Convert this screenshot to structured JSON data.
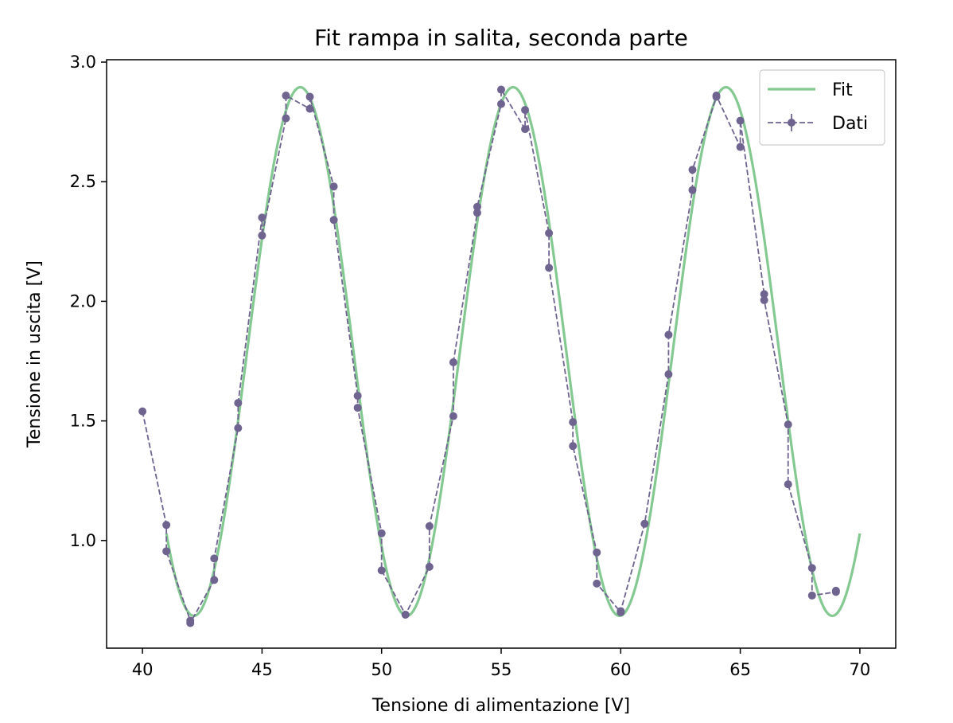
{
  "chart_data": {
    "type": "line",
    "title": "Fit rampa in salita, seconda parte",
    "xlabel": "Tensione di alimentazione [V]",
    "ylabel": "Tensione in uscita [V]",
    "xlim": [
      38.5,
      71.5
    ],
    "ylim": [
      0.55,
      3.01
    ],
    "xticks": [
      40,
      45,
      50,
      55,
      60,
      65,
      70
    ],
    "yticks": [
      1.0,
      1.5,
      2.0,
      2.5,
      3.0
    ],
    "xtick_labels": [
      "40",
      "45",
      "50",
      "55",
      "60",
      "65",
      "70"
    ],
    "ytick_labels": [
      "1.0",
      "1.5",
      "2.0",
      "2.5",
      "3.0"
    ],
    "grid": false,
    "legend_position": "top-right",
    "series": [
      {
        "name": "Fit",
        "style": "solid",
        "color": "#84c991",
        "function": "sine",
        "x_range": [
          41.0,
          70.0
        ],
        "offset": 1.79,
        "amplitude": 1.105,
        "period": 8.9,
        "peak_x": 46.6
      },
      {
        "name": "Dati",
        "style": "dashed-markers",
        "color": "#6f6390",
        "x": [
          40,
          41,
          41,
          42,
          42,
          43,
          43,
          44,
          44,
          45,
          45,
          46,
          46,
          47,
          47,
          48,
          48,
          49,
          49,
          50,
          50,
          51,
          52,
          52,
          53,
          53,
          54,
          54,
          55,
          55,
          56,
          56,
          57,
          57,
          58,
          58,
          59,
          59,
          60,
          60,
          61,
          62,
          62,
          63,
          63,
          64,
          64,
          65,
          65,
          66,
          66,
          67,
          67,
          68,
          68,
          69,
          69
        ],
        "y": [
          1.54,
          1.065,
          0.955,
          0.665,
          0.655,
          0.835,
          0.925,
          1.47,
          1.575,
          2.35,
          2.275,
          2.765,
          2.86,
          2.805,
          2.855,
          2.48,
          2.34,
          1.605,
          1.555,
          1.03,
          0.875,
          0.69,
          0.89,
          1.06,
          1.52,
          1.745,
          2.37,
          2.395,
          2.825,
          2.885,
          2.72,
          2.8,
          2.285,
          2.14,
          1.495,
          1.395,
          0.95,
          0.82,
          0.7,
          0.705,
          1.07,
          1.695,
          1.86,
          2.465,
          2.55,
          2.855,
          2.86,
          2.645,
          2.755,
          2.03,
          2.005,
          1.485,
          1.235,
          0.885,
          0.77,
          0.785,
          0.79
        ]
      }
    ]
  }
}
